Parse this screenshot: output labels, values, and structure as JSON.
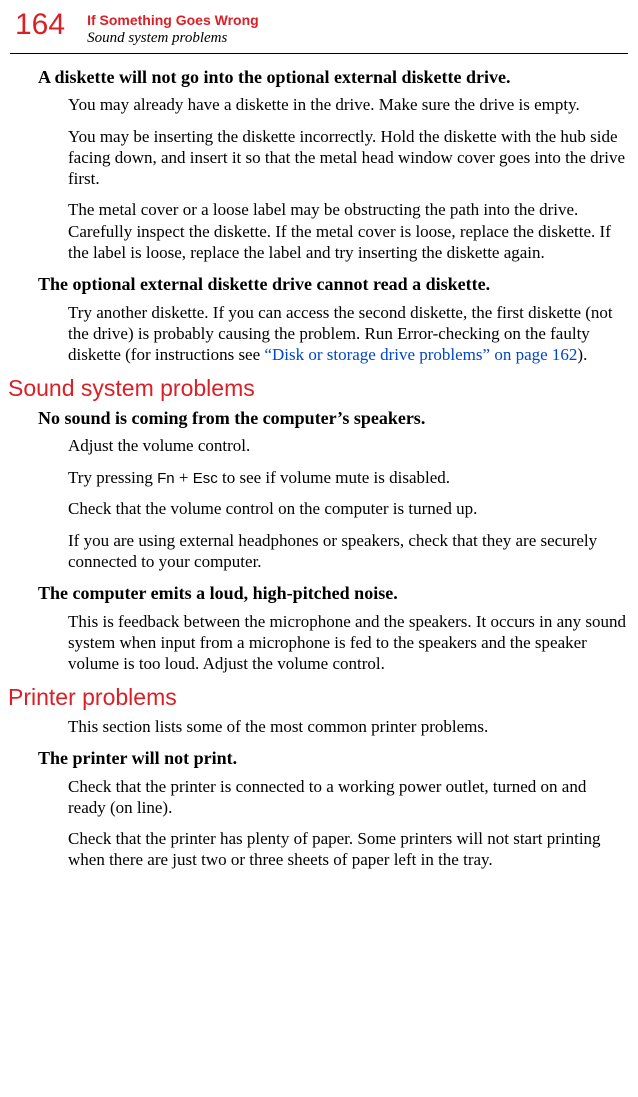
{
  "header": {
    "page_number": "164",
    "chapter": "If Something Goes Wrong",
    "section": "Sound system problems"
  },
  "content": {
    "h1": "A diskette will not go into the optional external diskette drive.",
    "p1": "You may already have a diskette in the drive. Make sure the drive is empty.",
    "p2": "You may be inserting the diskette incorrectly. Hold the diskette with the hub side facing down, and insert it so that the metal head window cover goes into the drive first.",
    "p3": "The metal cover or a loose label may be obstructing the path into the drive. Carefully inspect the diskette. If the metal cover is loose, replace the diskette. If the label is loose, replace the label and try inserting the diskette again.",
    "h2": "The optional external diskette drive cannot read a diskette.",
    "p4a": "Try another diskette. If you can access the second diskette, the first diskette (not the drive) is probably causing the problem. Run Error-checking on the faulty diskette (for instructions see ",
    "p4link": "“Disk or storage drive problems” on page 162",
    "p4b": ").",
    "sh1": "Sound system problems",
    "h3": "No sound is coming from the computer’s speakers.",
    "p5": "Adjust the volume control.",
    "p6a": "Try pressing ",
    "p6k1": "Fn",
    "p6plus": " + ",
    "p6k2": "Esc",
    "p6b": " to see if volume mute is disabled.",
    "p7": "Check that the volume control on the computer is turned up.",
    "p8": "If you are using external headphones or speakers, check that they are securely connected to your computer.",
    "h4": "The computer emits a loud, high-pitched noise.",
    "p9": "This is feedback between the microphone and the speakers. It occurs in any sound system when input from a microphone is fed to the speakers and the speaker volume is too loud. Adjust the volume control.",
    "sh2": "Printer problems",
    "p10": "This section lists some of the most common printer problems.",
    "h5": "The printer will not print.",
    "p11": "Check that the printer is connected to a working power outlet, turned on and ready (on line).",
    "p12": "Check that the printer has plenty of paper. Some printers will not start printing when there are just two or three sheets of paper left in the tray."
  }
}
